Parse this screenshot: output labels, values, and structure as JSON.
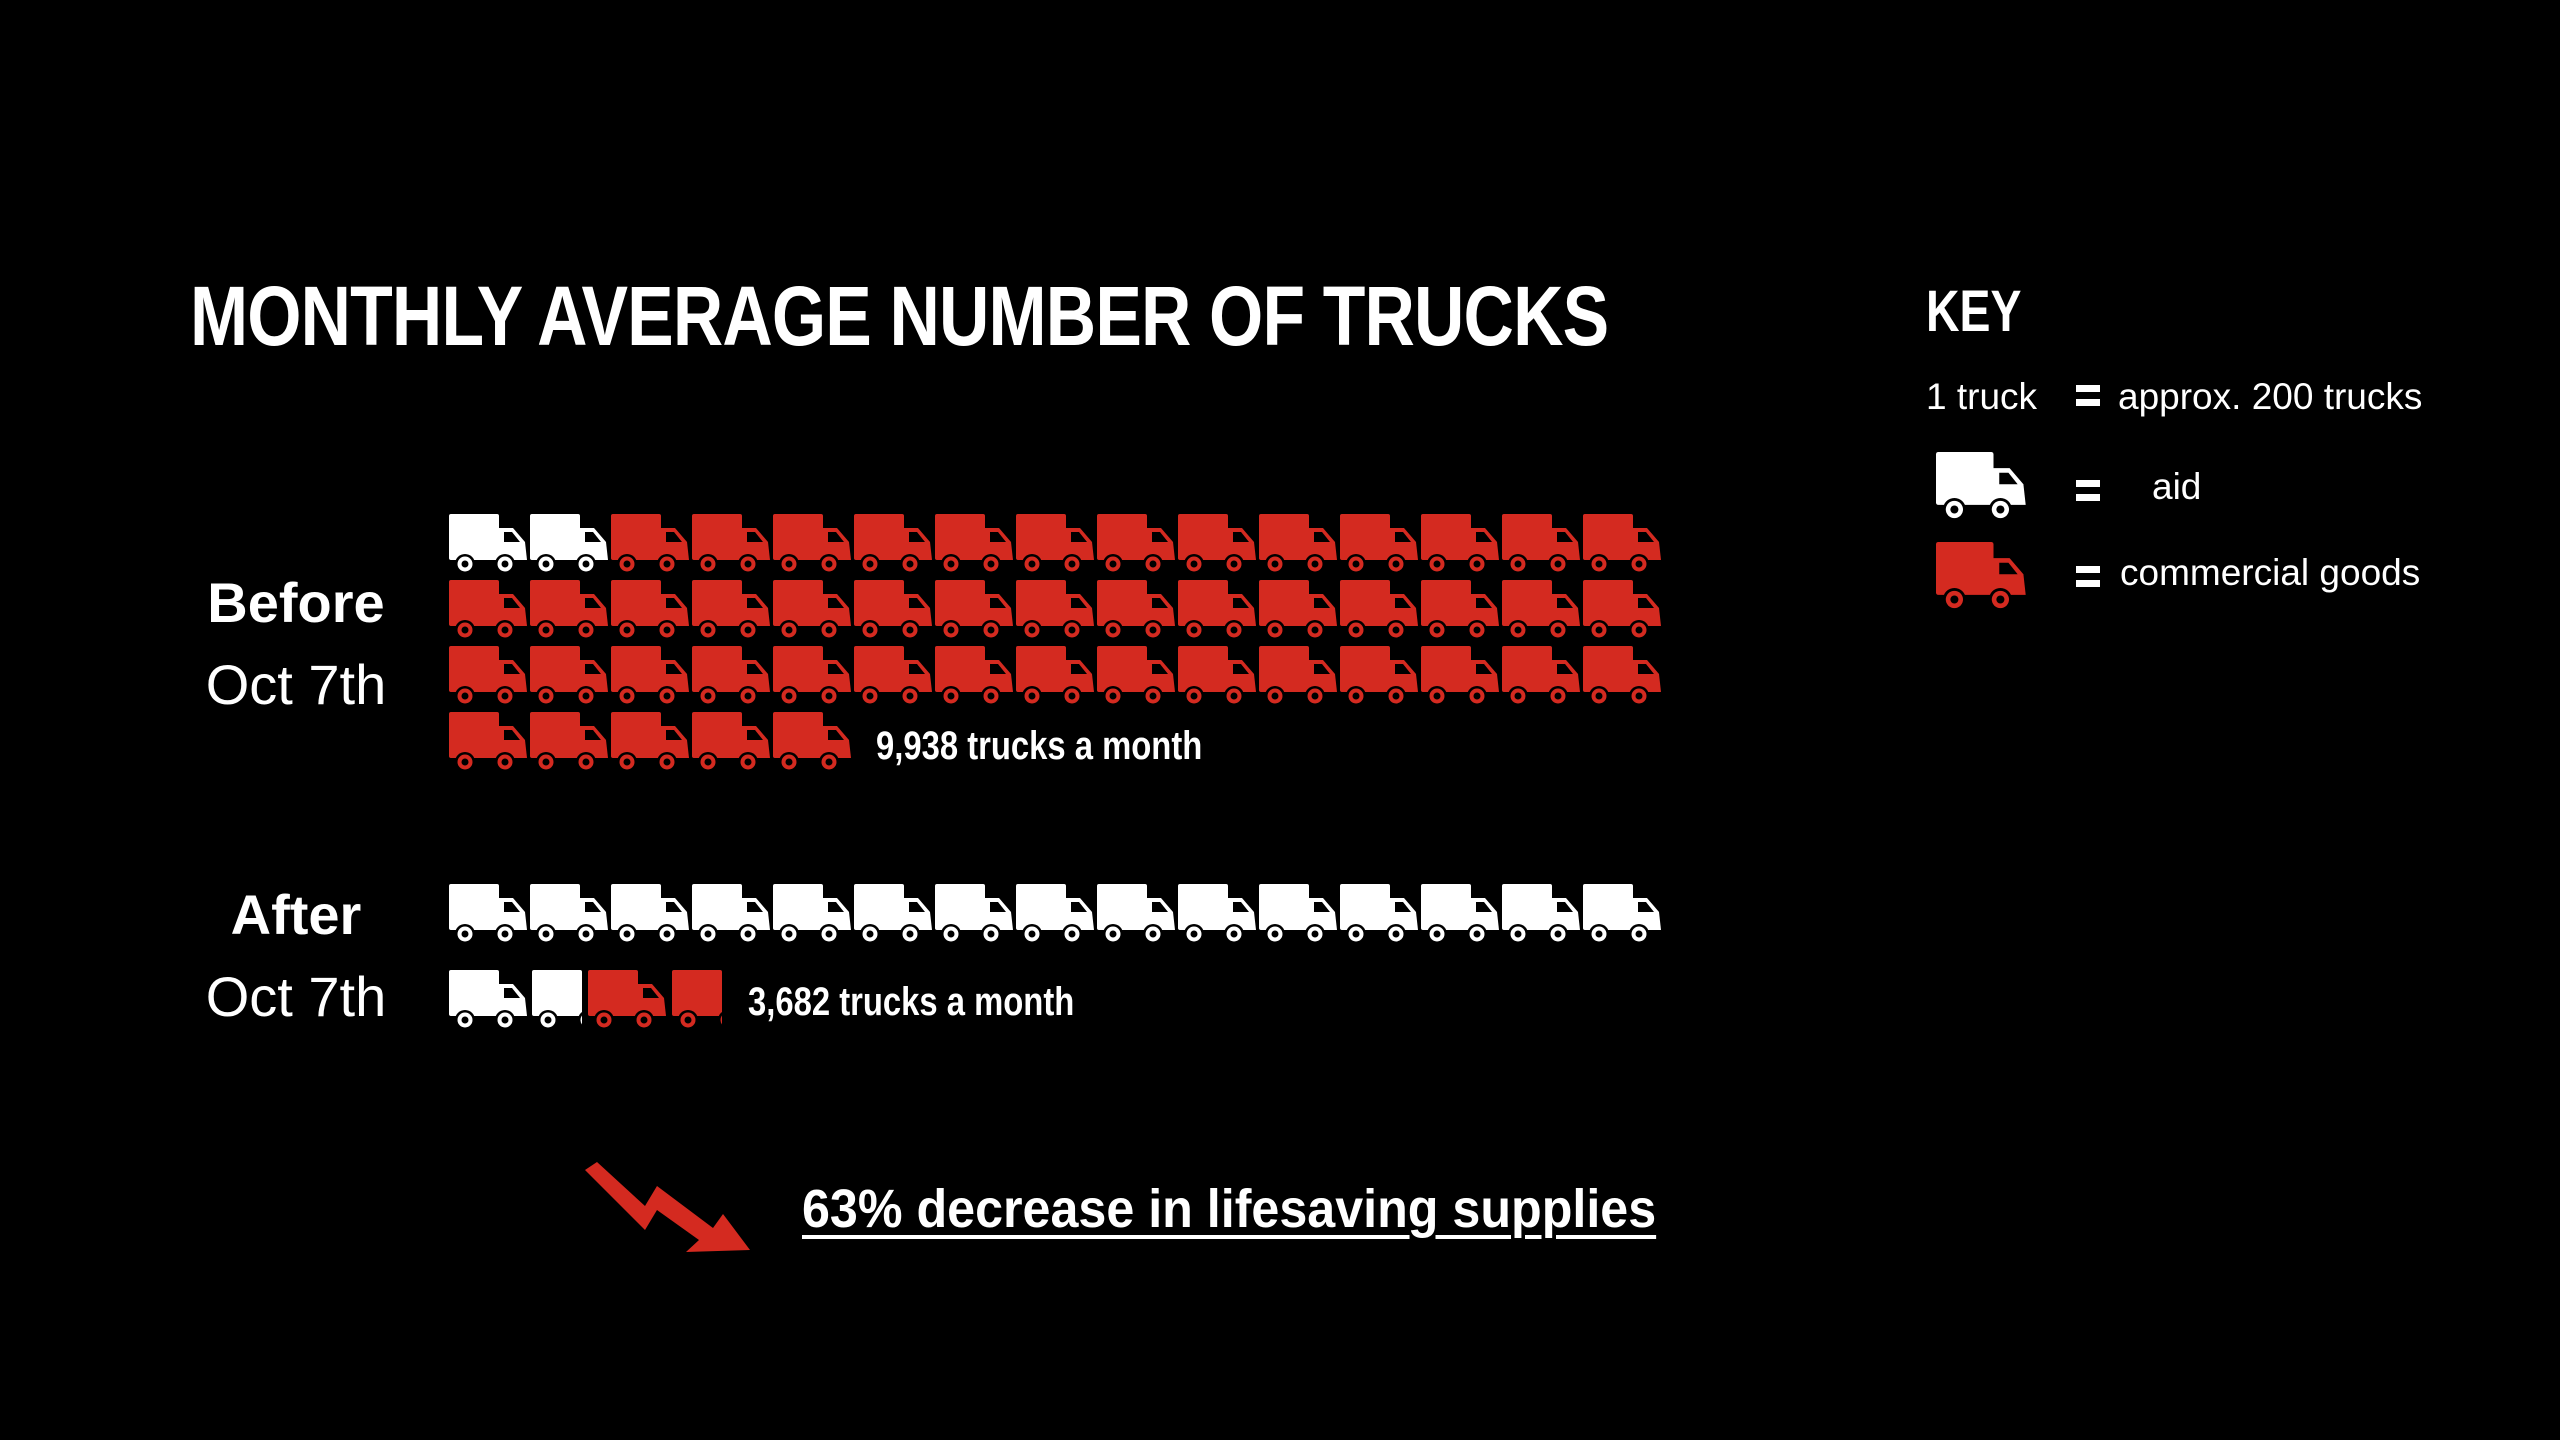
{
  "title": "MONTHLY AVERAGE NUMBER OF TRUCKS",
  "key": {
    "title": "KEY",
    "scale_left": "1 truck",
    "scale_right": "approx. 200 trucks",
    "aid_label": "aid",
    "commercial_label": "commercial goods",
    "aid_icon": "truck-icon",
    "commercial_icon": "truck-icon"
  },
  "colors": {
    "aid": "#ffffff",
    "commercial": "#d42a20",
    "background": "#000000"
  },
  "chart_data": {
    "type": "pictogram",
    "unit_note": "1 truck = approx. 200 trucks",
    "series": [
      {
        "name": "aid",
        "color": "#ffffff"
      },
      {
        "name": "commercial goods",
        "color": "#d42a20"
      }
    ],
    "rows": [
      {
        "label_line1": "Before",
        "label_line2": "Oct 7th",
        "total_label": "9,938 trucks a month",
        "icons_aid": 2,
        "icons_commercial": 48,
        "icons_total": 50
      },
      {
        "label_line1": "After",
        "label_line2": "Oct 7th",
        "total_label": "3,682 trucks a month",
        "icons_aid": 16.5,
        "icons_commercial": 1.5,
        "icons_total": 18
      }
    ],
    "annotation": "63% decrease in lifesaving supplies"
  }
}
